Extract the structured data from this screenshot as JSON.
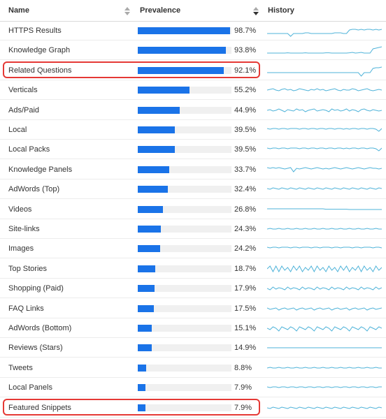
{
  "header": {
    "name_label": "Name",
    "prevalence_label": "Prevalence",
    "history_label": "History"
  },
  "accent_color": "#1a73e8",
  "sparkline_color": "#4fb3d9",
  "highlight_color": "#e53935",
  "rows": [
    {
      "name": "HTTPS Results",
      "pct": "98.7%",
      "value": 98.7,
      "highlighted": false,
      "history": [
        0.3,
        0.3,
        0.3,
        0.3,
        0.3,
        0.3,
        0.3,
        0.3,
        0.1,
        0.3,
        0.3,
        0.3,
        0.3,
        0.35,
        0.35,
        0.3,
        0.3,
        0.3,
        0.3,
        0.3,
        0.3,
        0.3,
        0.3,
        0.35,
        0.35,
        0.35,
        0.3,
        0.3,
        0.55,
        0.6,
        0.6,
        0.55,
        0.6,
        0.55,
        0.6,
        0.6,
        0.55,
        0.6,
        0.55,
        0.6
      ]
    },
    {
      "name": "Knowledge Graph",
      "pct": "93.8%",
      "value": 93.8,
      "highlighted": false,
      "history": [
        0.3,
        0.3,
        0.3,
        0.3,
        0.3,
        0.3,
        0.3,
        0.32,
        0.3,
        0.3,
        0.3,
        0.3,
        0.3,
        0.32,
        0.3,
        0.3,
        0.3,
        0.3,
        0.3,
        0.3,
        0.32,
        0.32,
        0.3,
        0.3,
        0.3,
        0.3,
        0.3,
        0.3,
        0.32,
        0.35,
        0.3,
        0.32,
        0.35,
        0.3,
        0.3,
        0.3,
        0.6,
        0.65,
        0.7,
        0.75
      ]
    },
    {
      "name": "Related Questions",
      "pct": "92.1%",
      "value": 92.1,
      "highlighted": true,
      "history": [
        0.35,
        0.35,
        0.35,
        0.35,
        0.35,
        0.35,
        0.35,
        0.35,
        0.35,
        0.35,
        0.35,
        0.35,
        0.35,
        0.35,
        0.35,
        0.35,
        0.35,
        0.35,
        0.35,
        0.35,
        0.35,
        0.35,
        0.35,
        0.35,
        0.35,
        0.35,
        0.35,
        0.35,
        0.35,
        0.35,
        0.35,
        0.35,
        0.1,
        0.35,
        0.35,
        0.35,
        0.65,
        0.7,
        0.7,
        0.75
      ]
    },
    {
      "name": "Verticals",
      "pct": "55.2%",
      "value": 55.2,
      "highlighted": false,
      "history": [
        0.5,
        0.55,
        0.6,
        0.5,
        0.45,
        0.55,
        0.6,
        0.5,
        0.55,
        0.45,
        0.5,
        0.6,
        0.55,
        0.5,
        0.45,
        0.55,
        0.5,
        0.6,
        0.5,
        0.55,
        0.45,
        0.5,
        0.55,
        0.6,
        0.5,
        0.45,
        0.55,
        0.5,
        0.5,
        0.6,
        0.55,
        0.45,
        0.5,
        0.55,
        0.6,
        0.5,
        0.45,
        0.5,
        0.55,
        0.5
      ]
    },
    {
      "name": "Ads/Paid",
      "pct": "44.9%",
      "value": 44.9,
      "highlighted": false,
      "history": [
        0.5,
        0.55,
        0.45,
        0.5,
        0.6,
        0.5,
        0.4,
        0.55,
        0.5,
        0.45,
        0.6,
        0.5,
        0.55,
        0.4,
        0.5,
        0.55,
        0.6,
        0.45,
        0.5,
        0.55,
        0.5,
        0.4,
        0.6,
        0.5,
        0.55,
        0.45,
        0.5,
        0.6,
        0.45,
        0.55,
        0.5,
        0.4,
        0.55,
        0.6,
        0.5,
        0.45,
        0.55,
        0.5,
        0.45,
        0.5
      ]
    },
    {
      "name": "Local",
      "pct": "39.5%",
      "value": 39.5,
      "highlighted": false,
      "history": [
        0.6,
        0.55,
        0.6,
        0.6,
        0.55,
        0.6,
        0.6,
        0.55,
        0.6,
        0.6,
        0.6,
        0.55,
        0.6,
        0.6,
        0.55,
        0.6,
        0.6,
        0.55,
        0.6,
        0.6,
        0.55,
        0.6,
        0.6,
        0.55,
        0.6,
        0.6,
        0.55,
        0.6,
        0.55,
        0.6,
        0.6,
        0.55,
        0.6,
        0.6,
        0.55,
        0.6,
        0.6,
        0.55,
        0.4,
        0.6
      ]
    },
    {
      "name": "Local Packs",
      "pct": "39.5%",
      "value": 39.5,
      "highlighted": false,
      "history": [
        0.6,
        0.55,
        0.6,
        0.6,
        0.55,
        0.6,
        0.6,
        0.55,
        0.6,
        0.6,
        0.6,
        0.55,
        0.6,
        0.6,
        0.55,
        0.6,
        0.6,
        0.55,
        0.6,
        0.6,
        0.55,
        0.6,
        0.6,
        0.55,
        0.6,
        0.6,
        0.55,
        0.6,
        0.55,
        0.6,
        0.6,
        0.55,
        0.6,
        0.6,
        0.55,
        0.6,
        0.6,
        0.55,
        0.4,
        0.6
      ]
    },
    {
      "name": "Knowledge Panels",
      "pct": "33.7%",
      "value": 33.7,
      "highlighted": false,
      "history": [
        0.65,
        0.6,
        0.65,
        0.6,
        0.65,
        0.6,
        0.55,
        0.6,
        0.65,
        0.35,
        0.6,
        0.55,
        0.6,
        0.65,
        0.6,
        0.55,
        0.6,
        0.65,
        0.6,
        0.55,
        0.6,
        0.55,
        0.6,
        0.65,
        0.6,
        0.55,
        0.6,
        0.65,
        0.6,
        0.55,
        0.6,
        0.65,
        0.6,
        0.55,
        0.6,
        0.65,
        0.6,
        0.6,
        0.55,
        0.6
      ]
    },
    {
      "name": "AdWords (Top)",
      "pct": "32.4%",
      "value": 32.4,
      "highlighted": false,
      "history": [
        0.55,
        0.5,
        0.6,
        0.55,
        0.5,
        0.6,
        0.55,
        0.5,
        0.6,
        0.55,
        0.5,
        0.6,
        0.55,
        0.5,
        0.6,
        0.55,
        0.5,
        0.6,
        0.55,
        0.5,
        0.6,
        0.55,
        0.5,
        0.6,
        0.55,
        0.5,
        0.6,
        0.55,
        0.5,
        0.6,
        0.55,
        0.5,
        0.6,
        0.55,
        0.5,
        0.6,
        0.55,
        0.5,
        0.6,
        0.55
      ]
    },
    {
      "name": "Videos",
      "pct": "26.8%",
      "value": 26.8,
      "highlighted": false,
      "history": [
        0.55,
        0.55,
        0.55,
        0.55,
        0.55,
        0.55,
        0.55,
        0.55,
        0.55,
        0.55,
        0.55,
        0.55,
        0.55,
        0.55,
        0.55,
        0.55,
        0.55,
        0.55,
        0.55,
        0.55,
        0.52,
        0.52,
        0.52,
        0.52,
        0.52,
        0.52,
        0.52,
        0.52,
        0.5,
        0.5,
        0.5,
        0.5,
        0.5,
        0.5,
        0.5,
        0.5,
        0.5,
        0.5,
        0.5,
        0.5
      ]
    },
    {
      "name": "Site-links",
      "pct": "24.3%",
      "value": 24.3,
      "highlighted": false,
      "history": [
        0.5,
        0.55,
        0.5,
        0.5,
        0.55,
        0.5,
        0.5,
        0.55,
        0.5,
        0.5,
        0.55,
        0.5,
        0.5,
        0.55,
        0.5,
        0.5,
        0.55,
        0.5,
        0.5,
        0.55,
        0.5,
        0.5,
        0.55,
        0.5,
        0.5,
        0.55,
        0.5,
        0.5,
        0.55,
        0.5,
        0.5,
        0.55,
        0.5,
        0.5,
        0.55,
        0.5,
        0.5,
        0.55,
        0.5,
        0.5
      ]
    },
    {
      "name": "Images",
      "pct": "24.2%",
      "value": 24.2,
      "highlighted": false,
      "history": [
        0.6,
        0.55,
        0.6,
        0.6,
        0.55,
        0.6,
        0.6,
        0.6,
        0.55,
        0.6,
        0.6,
        0.55,
        0.6,
        0.6,
        0.6,
        0.55,
        0.6,
        0.6,
        0.55,
        0.6,
        0.6,
        0.6,
        0.55,
        0.6,
        0.6,
        0.55,
        0.6,
        0.6,
        0.6,
        0.55,
        0.6,
        0.6,
        0.55,
        0.6,
        0.6,
        0.6,
        0.55,
        0.6,
        0.6,
        0.55
      ]
    },
    {
      "name": "Top Stories",
      "pct": "18.7%",
      "value": 18.7,
      "highlighted": false,
      "history": [
        0.5,
        0.7,
        0.3,
        0.7,
        0.3,
        0.7,
        0.4,
        0.6,
        0.3,
        0.7,
        0.4,
        0.7,
        0.3,
        0.6,
        0.4,
        0.7,
        0.3,
        0.7,
        0.4,
        0.6,
        0.3,
        0.7,
        0.4,
        0.6,
        0.3,
        0.7,
        0.4,
        0.7,
        0.3,
        0.6,
        0.4,
        0.7,
        0.3,
        0.7,
        0.4,
        0.6,
        0.3,
        0.7,
        0.4,
        0.6
      ]
    },
    {
      "name": "Shopping (Paid)",
      "pct": "17.9%",
      "value": 17.9,
      "highlighted": false,
      "history": [
        0.5,
        0.4,
        0.6,
        0.45,
        0.55,
        0.5,
        0.4,
        0.6,
        0.45,
        0.55,
        0.5,
        0.4,
        0.6,
        0.45,
        0.55,
        0.5,
        0.4,
        0.6,
        0.45,
        0.55,
        0.5,
        0.4,
        0.6,
        0.45,
        0.55,
        0.5,
        0.4,
        0.6,
        0.45,
        0.55,
        0.5,
        0.4,
        0.6,
        0.45,
        0.55,
        0.5,
        0.4,
        0.6,
        0.45,
        0.55
      ]
    },
    {
      "name": "FAQ Links",
      "pct": "17.5%",
      "value": 17.5,
      "highlighted": false,
      "history": [
        0.55,
        0.45,
        0.5,
        0.55,
        0.4,
        0.5,
        0.55,
        0.45,
        0.5,
        0.55,
        0.4,
        0.5,
        0.55,
        0.45,
        0.5,
        0.55,
        0.4,
        0.5,
        0.55,
        0.45,
        0.5,
        0.55,
        0.4,
        0.5,
        0.55,
        0.45,
        0.5,
        0.55,
        0.4,
        0.5,
        0.55,
        0.45,
        0.5,
        0.55,
        0.4,
        0.5,
        0.55,
        0.45,
        0.5,
        0.55
      ]
    },
    {
      "name": "AdWords (Bottom)",
      "pct": "15.1%",
      "value": 15.1,
      "highlighted": false,
      "history": [
        0.5,
        0.4,
        0.6,
        0.5,
        0.3,
        0.6,
        0.5,
        0.4,
        0.6,
        0.5,
        0.3,
        0.6,
        0.5,
        0.4,
        0.6,
        0.5,
        0.3,
        0.6,
        0.5,
        0.4,
        0.6,
        0.5,
        0.3,
        0.6,
        0.5,
        0.4,
        0.6,
        0.5,
        0.3,
        0.6,
        0.5,
        0.4,
        0.6,
        0.5,
        0.3,
        0.6,
        0.5,
        0.4,
        0.6,
        0.5
      ]
    },
    {
      "name": "Reviews (Stars)",
      "pct": "14.9%",
      "value": 14.9,
      "highlighted": false,
      "history": [
        0.5,
        0.5,
        0.5,
        0.5,
        0.5,
        0.5,
        0.5,
        0.5,
        0.5,
        0.5,
        0.5,
        0.5,
        0.5,
        0.5,
        0.5,
        0.5,
        0.5,
        0.5,
        0.5,
        0.5,
        0.5,
        0.5,
        0.5,
        0.5,
        0.5,
        0.5,
        0.5,
        0.5,
        0.5,
        0.5,
        0.5,
        0.5,
        0.5,
        0.5,
        0.5,
        0.5,
        0.5,
        0.5,
        0.5,
        0.5
      ]
    },
    {
      "name": "Tweets",
      "pct": "8.8%",
      "value": 8.8,
      "highlighted": false,
      "history": [
        0.5,
        0.55,
        0.5,
        0.5,
        0.55,
        0.5,
        0.5,
        0.55,
        0.5,
        0.5,
        0.55,
        0.5,
        0.5,
        0.55,
        0.5,
        0.5,
        0.55,
        0.5,
        0.5,
        0.55,
        0.5,
        0.5,
        0.55,
        0.5,
        0.5,
        0.55,
        0.5,
        0.5,
        0.55,
        0.5,
        0.5,
        0.55,
        0.5,
        0.5,
        0.55,
        0.5,
        0.5,
        0.55,
        0.5,
        0.5
      ]
    },
    {
      "name": "Local Panels",
      "pct": "7.9%",
      "value": 7.9,
      "highlighted": false,
      "history": [
        0.55,
        0.5,
        0.55,
        0.55,
        0.5,
        0.55,
        0.55,
        0.5,
        0.55,
        0.55,
        0.5,
        0.55,
        0.55,
        0.5,
        0.55,
        0.55,
        0.5,
        0.55,
        0.55,
        0.5,
        0.55,
        0.55,
        0.5,
        0.55,
        0.55,
        0.5,
        0.55,
        0.55,
        0.5,
        0.55,
        0.55,
        0.5,
        0.55,
        0.55,
        0.5,
        0.55,
        0.55,
        0.5,
        0.55,
        0.55
      ]
    },
    {
      "name": "Featured Snippets",
      "pct": "7.9%",
      "value": 7.9,
      "highlighted": true,
      "history": [
        0.5,
        0.45,
        0.55,
        0.5,
        0.45,
        0.55,
        0.5,
        0.45,
        0.55,
        0.5,
        0.45,
        0.55,
        0.5,
        0.45,
        0.55,
        0.5,
        0.45,
        0.55,
        0.5,
        0.45,
        0.55,
        0.5,
        0.45,
        0.55,
        0.5,
        0.45,
        0.55,
        0.5,
        0.45,
        0.55,
        0.5,
        0.45,
        0.55,
        0.5,
        0.45,
        0.55,
        0.5,
        0.45,
        0.55,
        0.5
      ]
    }
  ]
}
